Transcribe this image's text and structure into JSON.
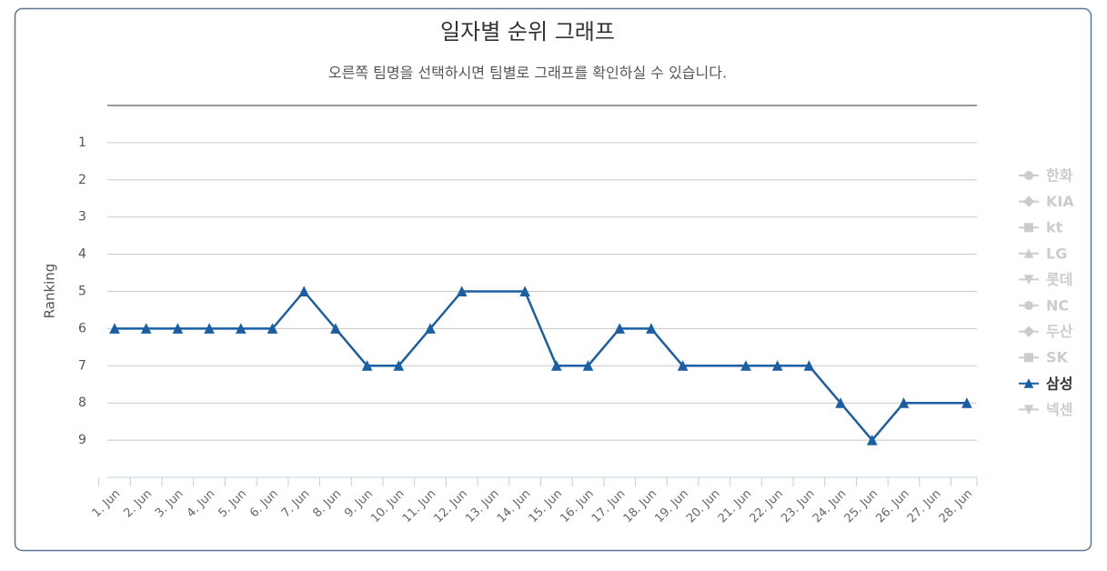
{
  "chart_data": {
    "type": "line",
    "title": "일자별 순위 그래프",
    "subtitle": "오른쪽 팀명을 선택하시면 팀별로 그래프를 확인하실 수 있습니다.",
    "y_label": "Ranking",
    "categories": [
      "1. Jun",
      "2. Jun",
      "3. Jun",
      "4. Jun",
      "5. Jun",
      "6. Jun",
      "7. Jun",
      "8. Jun",
      "9. Jun",
      "10. Jun",
      "11. Jun",
      "12. Jun",
      "13. Jun",
      "14. Jun",
      "15. Jun",
      "16. Jun",
      "17. Jun",
      "18. Jun",
      "19. Jun",
      "20. Jun",
      "21. Jun",
      "22. Jun",
      "23. Jun",
      "24. Jun",
      "25. Jun",
      "26. Jun",
      "27. Jun",
      "28. Jun"
    ],
    "ylim": [
      0,
      10
    ],
    "y_reversed": true,
    "yticks": [
      1,
      2,
      3,
      4,
      5,
      6,
      7,
      8,
      9
    ],
    "grid": true,
    "connect_nulls": true,
    "legend": "right",
    "series": [
      {
        "name": "한화",
        "marker": "circle",
        "visible": false
      },
      {
        "name": "KIA",
        "marker": "diamond",
        "visible": false
      },
      {
        "name": "kt",
        "marker": "square",
        "visible": false
      },
      {
        "name": "LG",
        "marker": "triangle",
        "visible": false
      },
      {
        "name": "롯데",
        "marker": "triangle-down",
        "visible": false
      },
      {
        "name": "NC",
        "marker": "circle",
        "visible": false
      },
      {
        "name": "두산",
        "marker": "diamond",
        "visible": false
      },
      {
        "name": "SK",
        "marker": "square",
        "visible": false
      },
      {
        "name": "삼성",
        "marker": "triangle",
        "visible": true,
        "color": "#1a5fa3",
        "values": [
          6,
          6,
          6,
          6,
          6,
          6,
          5,
          6,
          7,
          7,
          6,
          5,
          null,
          5,
          7,
          7,
          6,
          6,
          7,
          null,
          7,
          7,
          7,
          8,
          9,
          8,
          null,
          8
        ]
      },
      {
        "name": "넥센",
        "marker": "triangle-down",
        "visible": false
      }
    ]
  }
}
